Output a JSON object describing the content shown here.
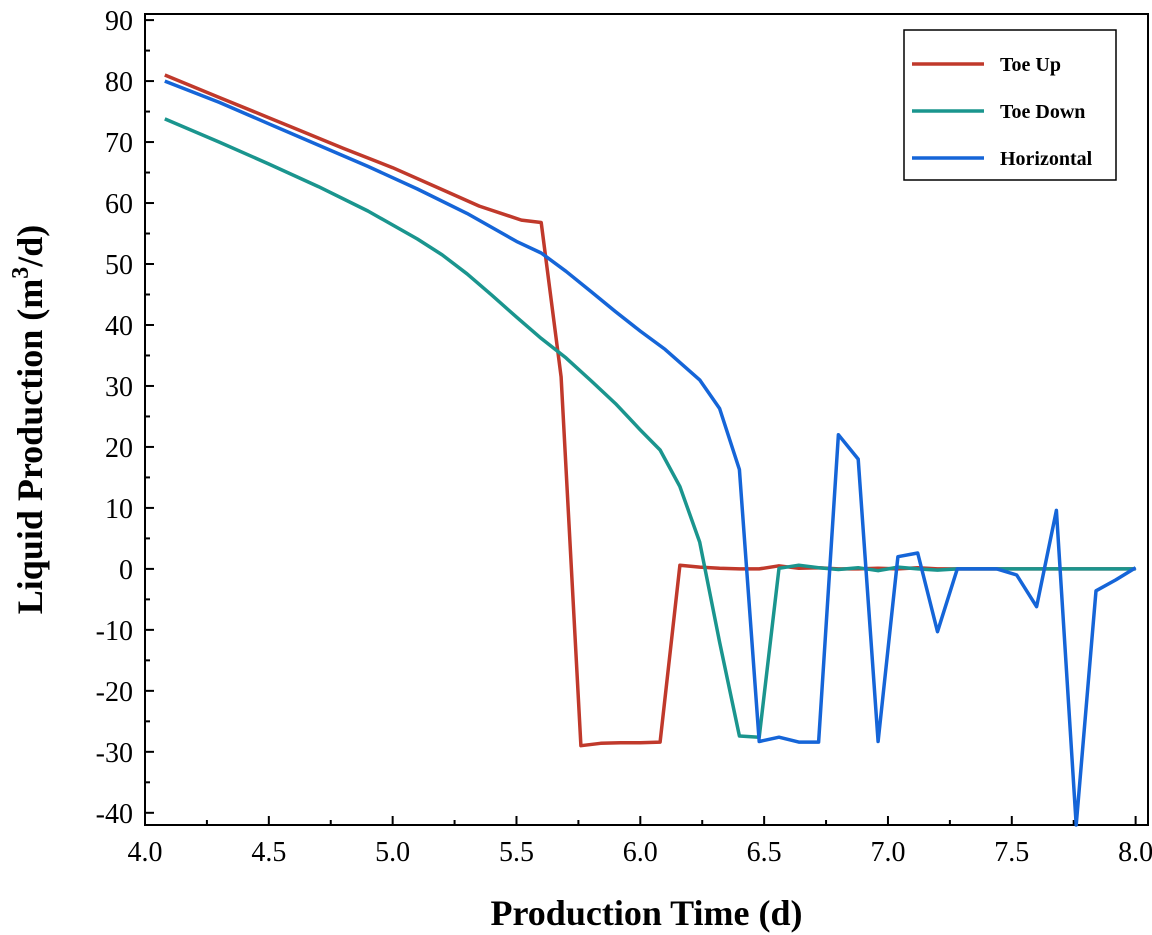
{
  "chart_data": {
    "type": "line",
    "xlabel": "Production Time (d)",
    "ylabel": "Liquid Production (m³/d)",
    "ylabel_parts": {
      "before": "Liquid Production (m",
      "sup": "3",
      "after": "/d)"
    },
    "xlim": [
      4.0,
      8.05
    ],
    "ylim": [
      -42,
      91
    ],
    "x_ticks": [
      4.0,
      4.5,
      5.0,
      5.5,
      6.0,
      6.5,
      7.0,
      7.5,
      8.0
    ],
    "x_tick_labels": [
      "4.0",
      "4.5",
      "5.0",
      "5.5",
      "6.0",
      "6.5",
      "7.0",
      "7.5",
      "8.0"
    ],
    "y_ticks": [
      -40,
      -30,
      -20,
      -10,
      0,
      10,
      20,
      30,
      40,
      50,
      60,
      70,
      80,
      90
    ],
    "y_tick_labels": [
      "-40",
      "-30",
      "-20",
      "-10",
      "0",
      "10",
      "20",
      "30",
      "40",
      "50",
      "60",
      "70",
      "80",
      "90"
    ],
    "legend_position": "top-right",
    "series": [
      {
        "name": "Toe Up",
        "color": "#c0392b",
        "x": [
          4.08,
          4.3,
          4.5,
          4.8,
          5.0,
          5.2,
          5.35,
          5.52,
          5.6,
          5.68,
          5.76,
          5.84,
          5.92,
          6.0,
          6.08,
          6.16,
          6.24,
          6.32,
          6.4,
          6.48,
          6.56,
          6.64,
          6.72,
          6.8,
          6.88,
          6.96,
          7.04,
          7.12,
          7.2,
          7.28,
          7.36,
          7.44,
          7.52,
          7.6,
          7.68,
          7.76,
          7.84,
          7.92,
          8.0
        ],
        "y": [
          81,
          77.3,
          74,
          69,
          65.8,
          62.2,
          59.5,
          57.2,
          56.8,
          31.5,
          -29,
          -28.6,
          -28.5,
          -28.5,
          -28.4,
          0.6,
          0.3,
          0.1,
          0,
          0,
          0.5,
          0.1,
          0.2,
          0,
          0,
          0.1,
          0,
          0.2,
          0,
          0,
          0,
          0,
          0,
          0,
          0,
          0,
          0,
          0,
          0
        ]
      },
      {
        "name": "Toe Down",
        "color": "#1a958e",
        "x": [
          4.08,
          4.3,
          4.5,
          4.7,
          4.9,
          5.1,
          5.2,
          5.3,
          5.4,
          5.5,
          5.6,
          5.7,
          5.8,
          5.9,
          6.0,
          6.08,
          6.16,
          6.24,
          6.32,
          6.4,
          6.48,
          6.56,
          6.64,
          6.72,
          6.8,
          6.88,
          6.96,
          7.04,
          7.12,
          7.2,
          7.28,
          7.36,
          7.44,
          7.52,
          7.6,
          7.68,
          7.76,
          7.84,
          7.92,
          8.0
        ],
        "y": [
          73.8,
          70,
          66.4,
          62.7,
          58.7,
          54.1,
          51.5,
          48.4,
          44.9,
          41.3,
          37.8,
          34.6,
          30.9,
          27.1,
          22.8,
          19.5,
          13.5,
          4.4,
          -12,
          -27.4,
          -27.6,
          0.1,
          0.6,
          0.2,
          -0.1,
          0.2,
          -0.3,
          0.3,
          0,
          -0.2,
          0,
          0,
          0,
          0,
          0,
          0,
          0,
          0,
          0,
          0
        ]
      },
      {
        "name": "Horizontal",
        "color": "#1565d8",
        "x": [
          4.08,
          4.3,
          4.5,
          4.7,
          4.9,
          5.1,
          5.3,
          5.5,
          5.6,
          5.7,
          5.8,
          5.9,
          6.0,
          6.1,
          6.24,
          6.32,
          6.4,
          6.48,
          6.56,
          6.64,
          6.72,
          6.8,
          6.88,
          6.96,
          7.04,
          7.12,
          7.2,
          7.28,
          7.36,
          7.44,
          7.52,
          7.6,
          7.68,
          7.76,
          7.84,
          7.92,
          8.0
        ],
        "y": [
          80,
          76.5,
          73,
          69.5,
          66,
          62.3,
          58.3,
          53.7,
          51.8,
          48.8,
          45.5,
          42.2,
          39,
          36,
          31,
          26.3,
          16.3,
          -28.3,
          -27.6,
          -28.4,
          -28.4,
          22,
          18,
          -28.3,
          2,
          2.6,
          -10.3,
          0,
          0,
          0,
          -1,
          -6.2,
          9.6,
          -42,
          -3.6,
          -1.8,
          0.2
        ]
      }
    ]
  }
}
